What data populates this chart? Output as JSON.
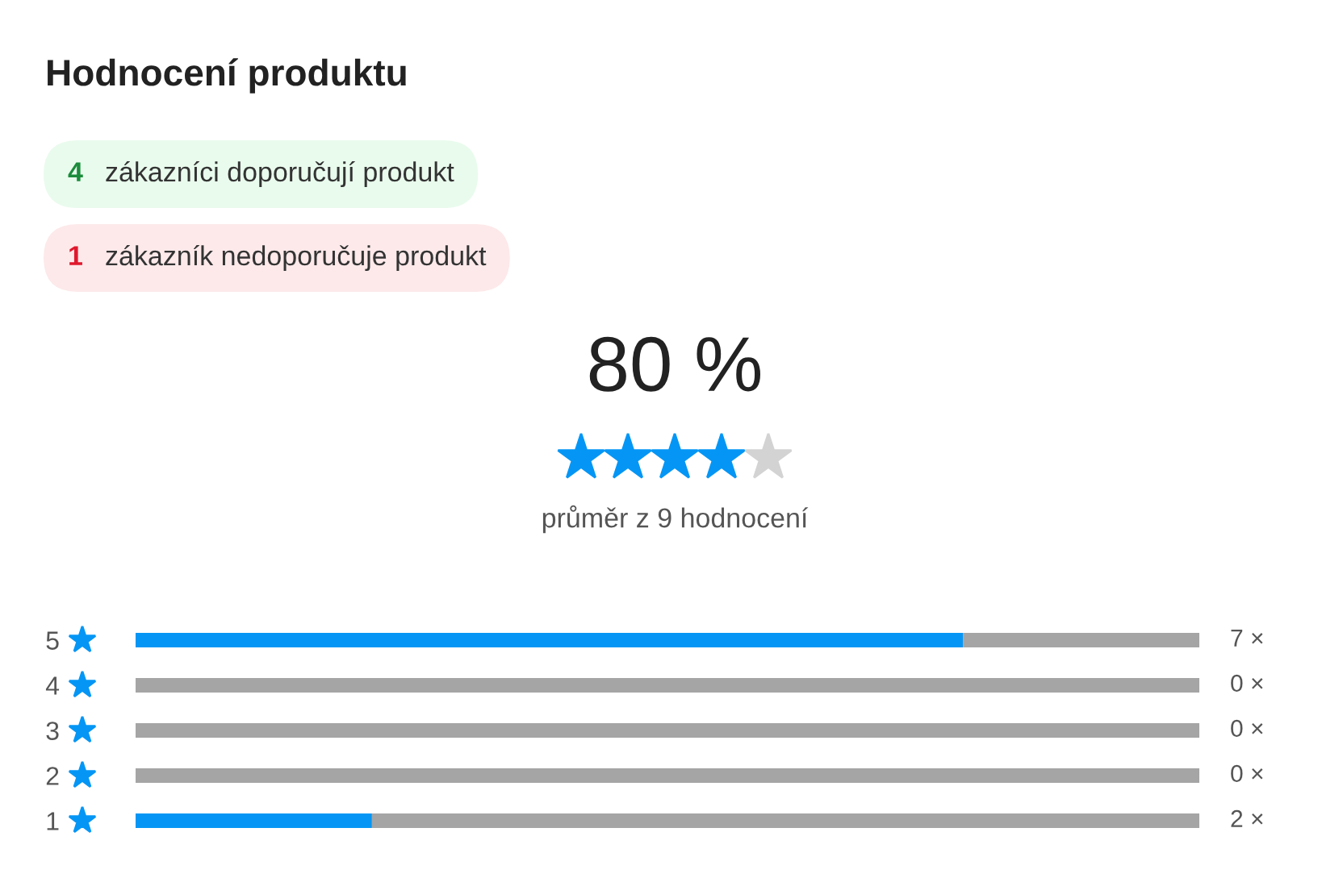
{
  "chart_data": {
    "type": "bar",
    "orientation": "horizontal",
    "stacked": true,
    "title": "Hodnocení produktu",
    "categories": [
      "5",
      "4",
      "3",
      "2",
      "1"
    ],
    "series": [
      {
        "color": "#0596f5",
        "values": [
          7,
          0,
          0,
          0,
          2
        ],
        "value_labels": [
          "7 ×",
          "0 ×",
          "0 ×",
          "0 ×",
          "2 ×"
        ]
      },
      {
        "color": "#a5a5a5",
        "values": [
          2,
          9,
          9,
          9,
          7
        ]
      }
    ],
    "xlim": [
      0,
      9
    ],
    "tick_labels": "y",
    "annotations": [
      "4",
      "zákazníci doporučují produkt",
      "1",
      "zákazník nedoporučuje produkt",
      "80 %",
      "průměr z 9 hodnocení"
    ]
  }
}
